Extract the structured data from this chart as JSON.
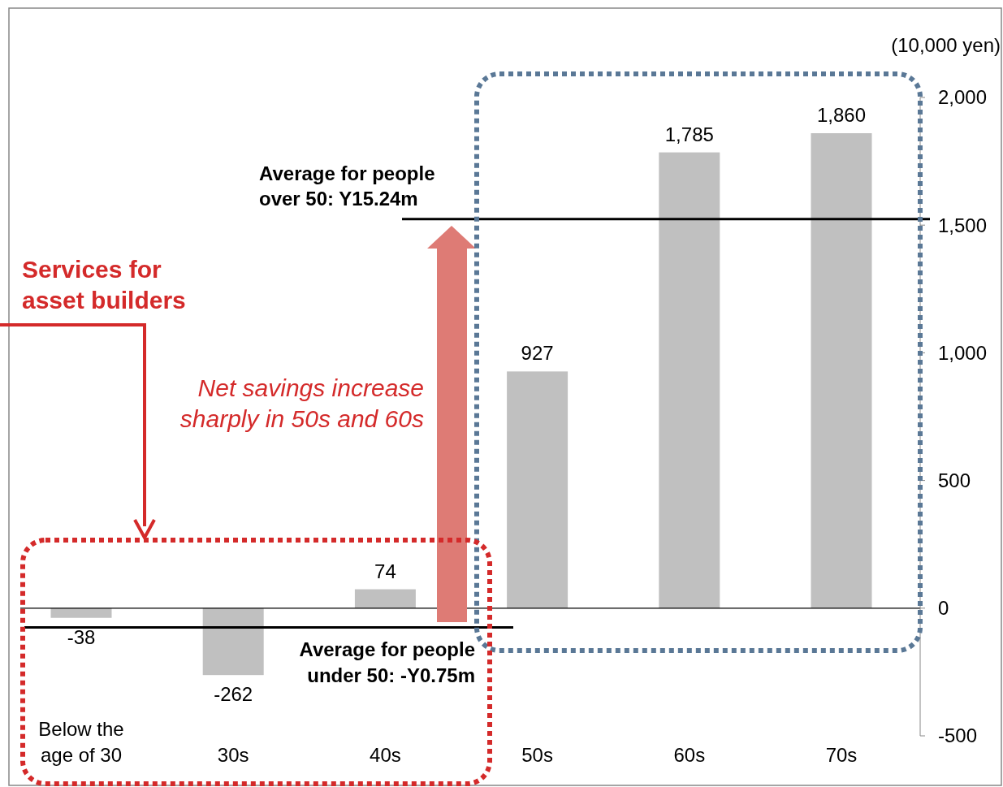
{
  "chart_data": {
    "type": "bar",
    "ylabel": "(10,000 yen)",
    "categories": [
      "Below the age of 30",
      "30s",
      "40s",
      "50s",
      "60s",
      "70s"
    ],
    "values": [
      -38,
      -262,
      74,
      927,
      1785,
      1860
    ],
    "value_labels": [
      "-38",
      "-262",
      "74",
      "927",
      "1,785",
      "1,860"
    ],
    "color": "#c0c0c0",
    "ylim": [
      -500,
      2000
    ],
    "yticks": [
      {
        "value": -500,
        "label": "-500"
      },
      {
        "value": 0,
        "label": "0"
      },
      {
        "value": 500,
        "label": "500"
      },
      {
        "value": 1000,
        "label": "1,000"
      },
      {
        "value": 1500,
        "label": "1,500"
      },
      {
        "value": 2000,
        "label": "2,000"
      }
    ],
    "ref_lines": [
      {
        "axis": "y",
        "value": 1524,
        "label": "Average for people over 50: Y15.24m",
        "color": "#000000"
      },
      {
        "axis": "y",
        "value": -75,
        "label": "Average for people under 50: -Y0.75m",
        "color": "#000000"
      }
    ],
    "annotations": [
      "Services for asset builders",
      "Net savings increase sharply in 50s and 60s"
    ]
  }
}
